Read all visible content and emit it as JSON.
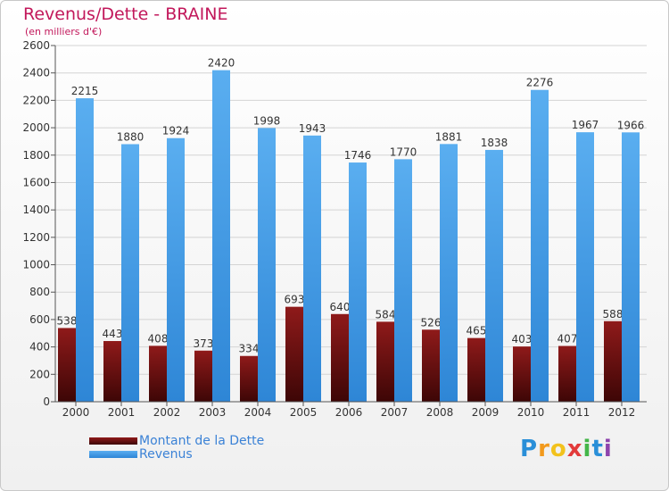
{
  "title": "Revenus/Dette - BRAINE",
  "subtitle": "(en milliers d'€)",
  "logo": {
    "letters": [
      "P",
      "r",
      "o",
      "x",
      "i",
      "t",
      "i"
    ],
    "colors": [
      "#2a8fd8",
      "#f29a1d",
      "#f2c21d",
      "#e23a3a",
      "#44b649",
      "#2a8fd8",
      "#8e44ad"
    ]
  },
  "colors": {
    "dette": "#7a1414",
    "revenus": "#3d9ae8"
  },
  "chart_data": {
    "type": "bar",
    "categories": [
      "2000",
      "2001",
      "2002",
      "2003",
      "2004",
      "2005",
      "2006",
      "2007",
      "2008",
      "2009",
      "2010",
      "2011",
      "2012"
    ],
    "series": [
      {
        "name": "Montant de la Dette",
        "values": [
          538,
          443,
          408,
          373,
          334,
          693,
          640,
          584,
          526,
          465,
          403,
          407,
          588
        ]
      },
      {
        "name": "Revenus",
        "values": [
          2215,
          1880,
          1924,
          2420,
          1998,
          1943,
          1746,
          1770,
          1881,
          1838,
          2276,
          1967,
          1966
        ]
      }
    ],
    "ylim": [
      0,
      2600
    ],
    "yticks": [
      0,
      200,
      400,
      600,
      800,
      1000,
      1200,
      1400,
      1600,
      1800,
      2000,
      2200,
      2400,
      2600
    ],
    "grid": true,
    "legend_position": "bottom-left"
  }
}
